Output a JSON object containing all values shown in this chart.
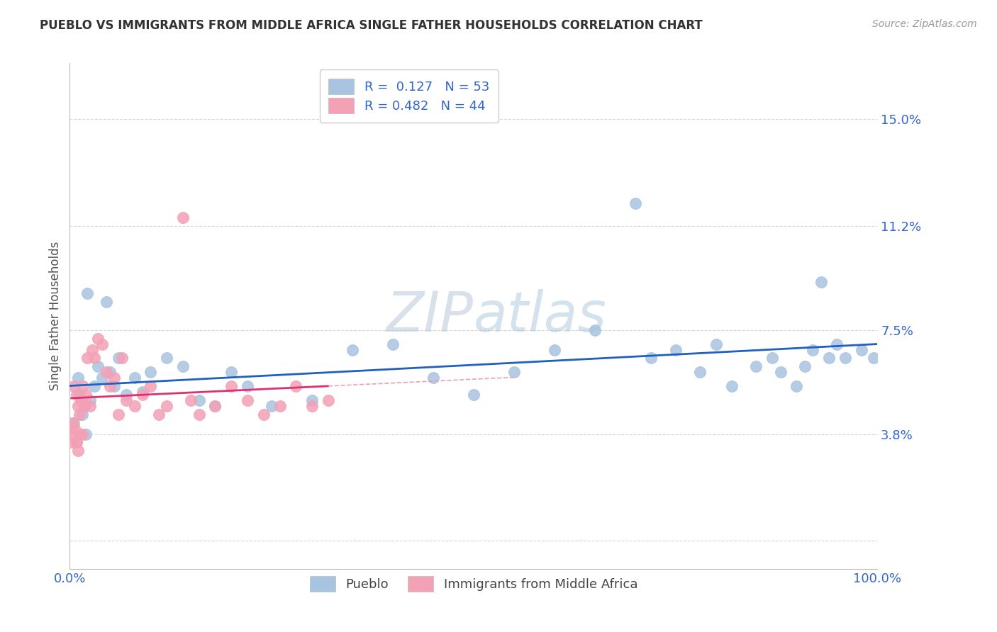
{
  "title": "PUEBLO VS IMMIGRANTS FROM MIDDLE AFRICA SINGLE FATHER HOUSEHOLDS CORRELATION CHART",
  "source": "Source: ZipAtlas.com",
  "ylabel": "Single Father Households",
  "xlim": [
    0.0,
    100.0
  ],
  "ylim": [
    -1.0,
    17.0
  ],
  "ytick_vals": [
    0.0,
    3.8,
    7.5,
    11.2,
    15.0
  ],
  "ytick_labels": [
    "",
    "3.8%",
    "7.5%",
    "11.2%",
    "15.0%"
  ],
  "xtick_vals": [
    0.0,
    25.0,
    50.0,
    75.0,
    100.0
  ],
  "xtick_labels": [
    "0.0%",
    "",
    "",
    "",
    "100.0%"
  ],
  "blue_scatter_color": "#a8c4e0",
  "pink_scatter_color": "#f4a0b5",
  "blue_line_color": "#2060c0",
  "pink_line_color": "#e03070",
  "pink_dash_color": "#e8a0b8",
  "R_blue": 0.127,
  "N_blue": 53,
  "R_pink": 0.482,
  "N_pink": 44,
  "watermark": "ZIPatlas",
  "watermark_color": "#c8d8e8",
  "title_color": "#333333",
  "source_color": "#999999",
  "ylabel_color": "#555555",
  "tick_color": "#3366cc",
  "grid_color": "#d0d8e0",
  "legend_edge_color": "#cccccc",
  "pueblo_x": [
    0.5,
    0.8,
    1.0,
    1.2,
    1.5,
    1.8,
    2.0,
    2.2,
    2.5,
    3.0,
    3.5,
    4.0,
    4.5,
    5.0,
    5.5,
    6.0,
    7.0,
    8.0,
    9.0,
    10.0,
    12.0,
    14.0,
    16.0,
    18.0,
    20.0,
    22.0,
    25.0,
    30.0,
    35.0,
    40.0,
    45.0,
    50.0,
    55.0,
    60.0,
    65.0,
    70.0,
    72.0,
    75.0,
    78.0,
    80.0,
    82.0,
    85.0,
    87.0,
    88.0,
    90.0,
    91.0,
    92.0,
    93.0,
    94.0,
    95.0,
    96.0,
    98.0,
    99.5
  ],
  "pueblo_y": [
    4.2,
    3.5,
    5.8,
    5.2,
    4.5,
    4.8,
    3.8,
    8.8,
    5.0,
    5.5,
    6.2,
    5.8,
    8.5,
    6.0,
    5.5,
    6.5,
    5.2,
    5.8,
    5.3,
    6.0,
    6.5,
    6.2,
    5.0,
    4.8,
    6.0,
    5.5,
    4.8,
    5.0,
    6.8,
    7.0,
    5.8,
    5.2,
    6.0,
    6.8,
    7.5,
    12.0,
    6.5,
    6.8,
    6.0,
    7.0,
    5.5,
    6.2,
    6.5,
    6.0,
    5.5,
    6.2,
    6.8,
    9.2,
    6.5,
    7.0,
    6.5,
    6.8,
    6.5
  ],
  "immigrants_x": [
    0.2,
    0.3,
    0.5,
    0.5,
    0.6,
    0.8,
    0.8,
    1.0,
    1.0,
    1.2,
    1.2,
    1.4,
    1.5,
    1.6,
    1.8,
    2.0,
    2.2,
    2.5,
    2.8,
    3.0,
    3.5,
    4.0,
    4.5,
    5.0,
    5.5,
    6.0,
    6.5,
    7.0,
    8.0,
    9.0,
    10.0,
    11.0,
    12.0,
    14.0,
    15.0,
    16.0,
    18.0,
    20.0,
    22.0,
    24.0,
    26.0,
    28.0,
    30.0,
    32.0
  ],
  "immigrants_y": [
    3.5,
    4.2,
    3.8,
    5.5,
    4.0,
    3.5,
    5.2,
    4.8,
    3.2,
    4.5,
    3.8,
    5.0,
    3.8,
    5.5,
    4.8,
    5.2,
    6.5,
    4.8,
    6.8,
    6.5,
    7.2,
    7.0,
    6.0,
    5.5,
    5.8,
    4.5,
    6.5,
    5.0,
    4.8,
    5.2,
    5.5,
    4.5,
    4.8,
    11.5,
    5.0,
    4.5,
    4.8,
    5.5,
    5.0,
    4.5,
    4.8,
    5.5,
    4.8,
    5.0
  ]
}
